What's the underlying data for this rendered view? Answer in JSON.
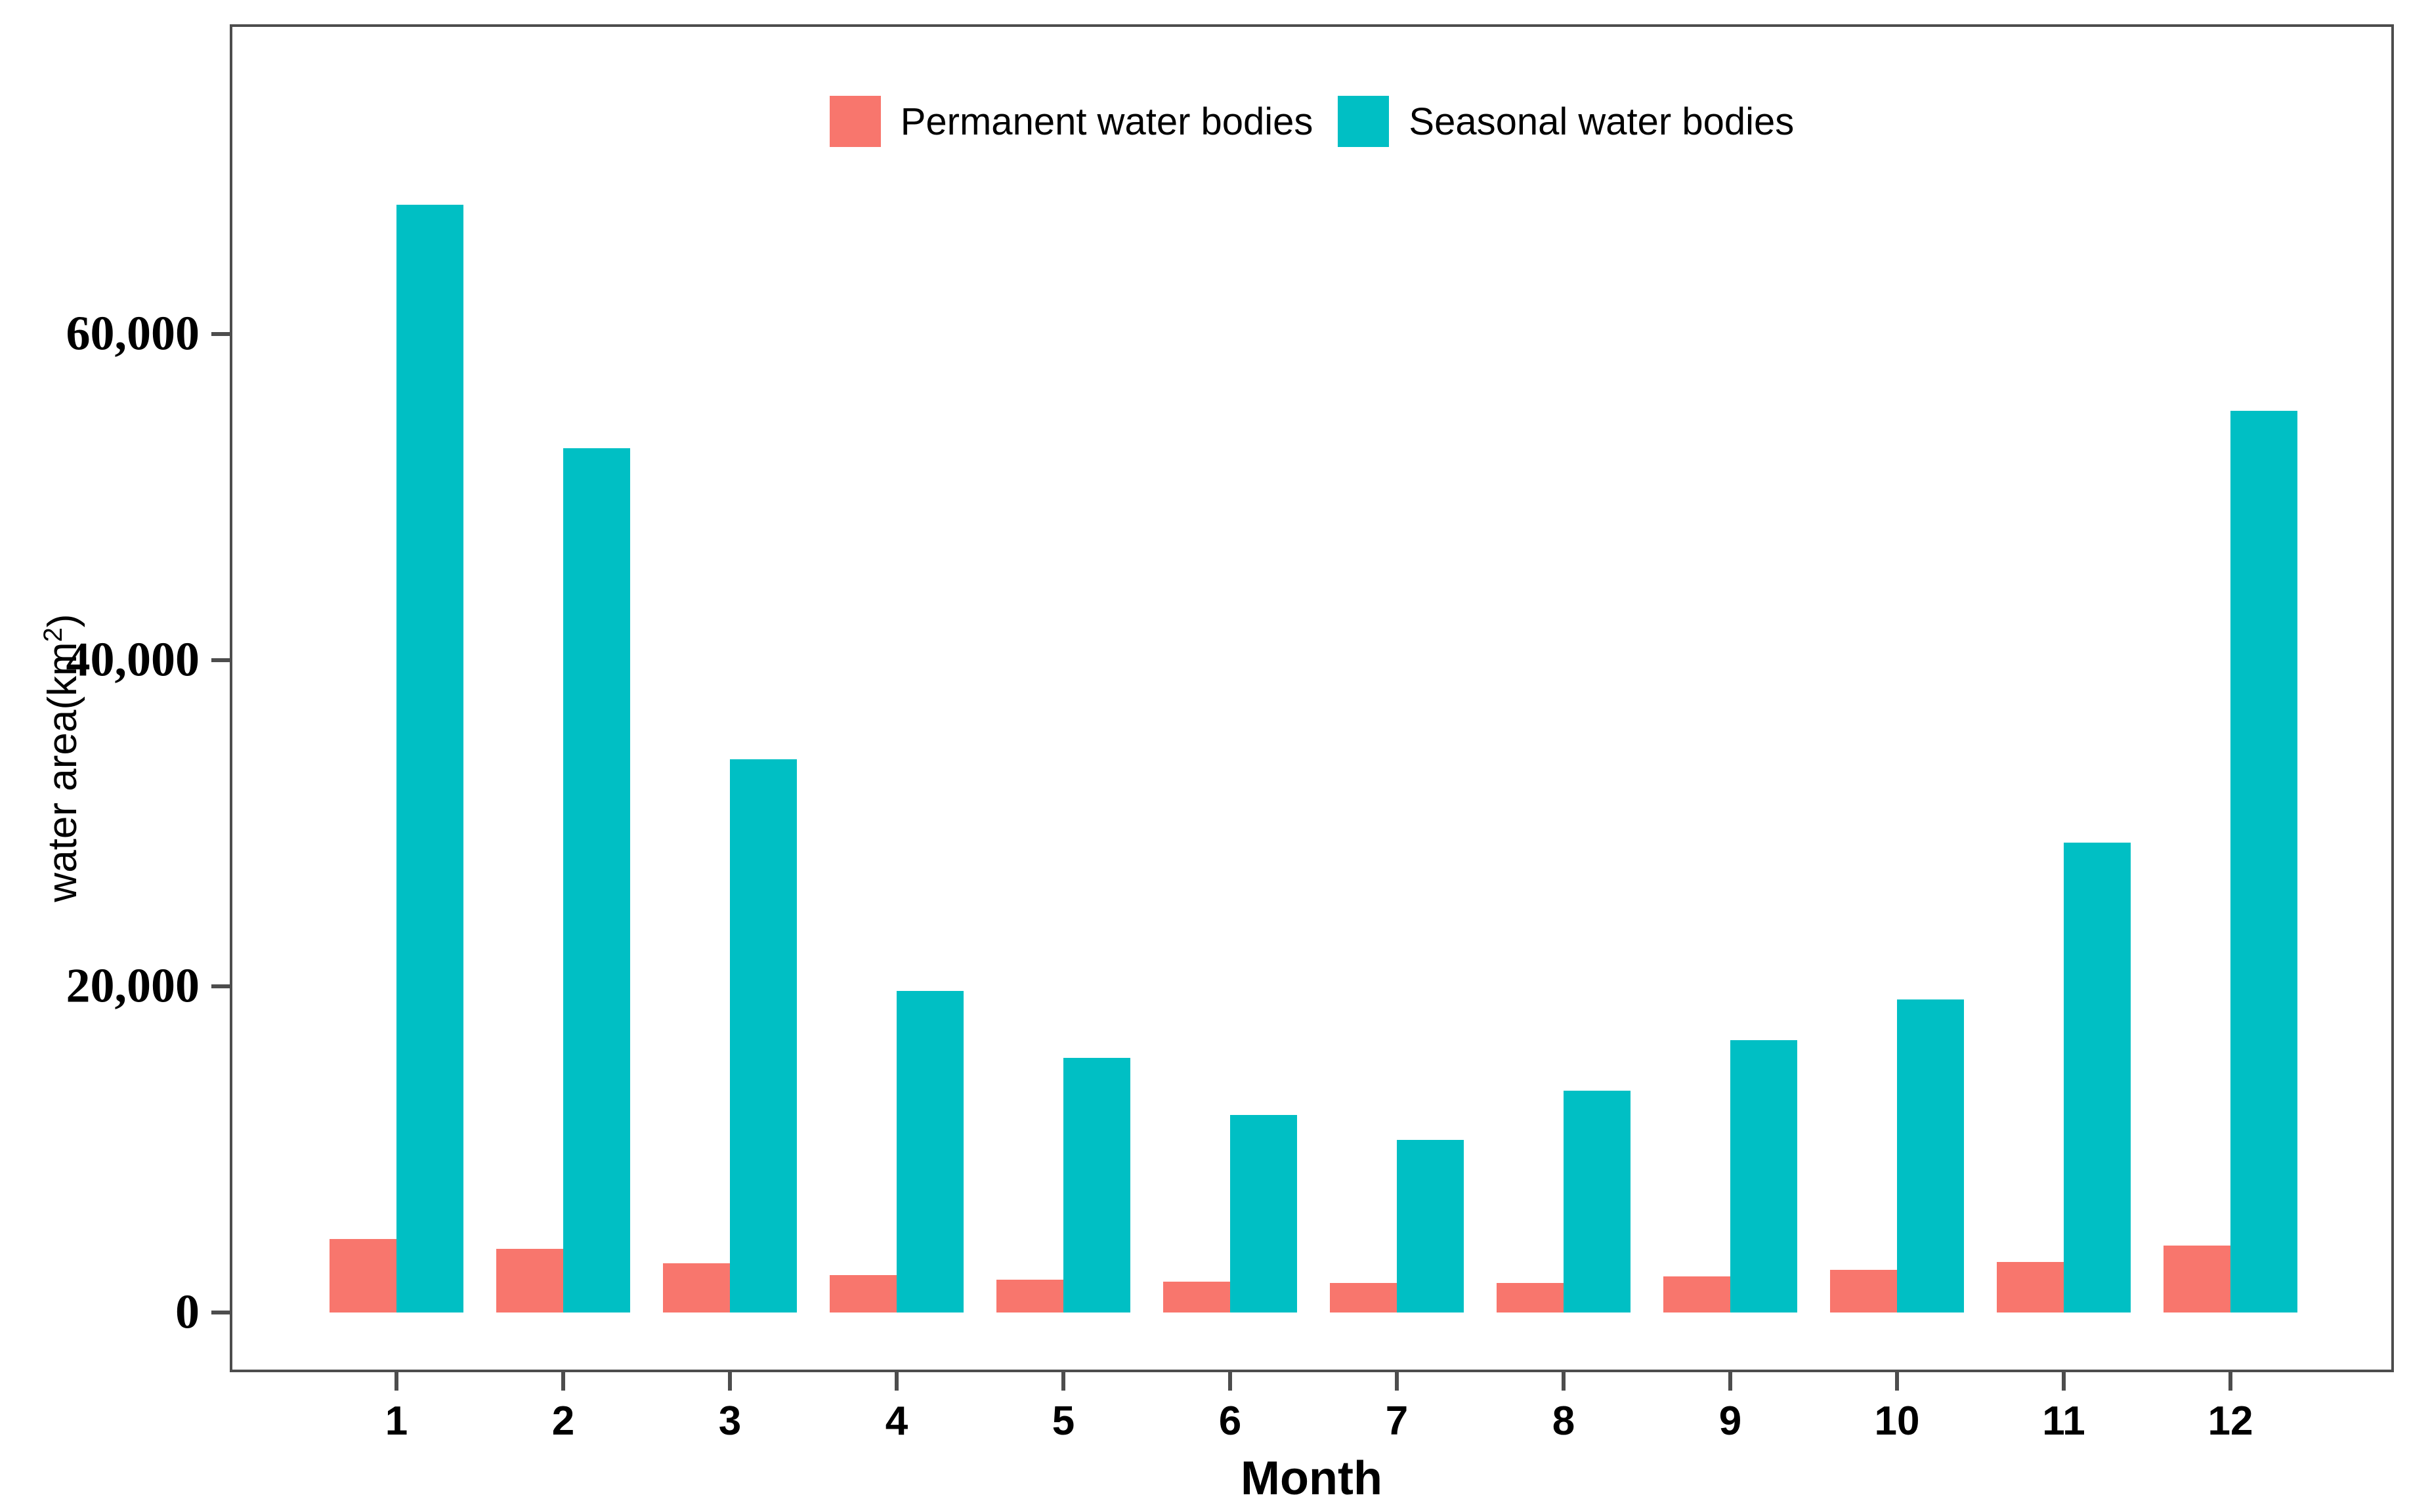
{
  "chart_data": {
    "type": "bar",
    "title": "",
    "categories": [
      "1",
      "2",
      "3",
      "4",
      "5",
      "6",
      "7",
      "8",
      "9",
      "10",
      "11",
      "12"
    ],
    "series": [
      {
        "name": "Permanent water bodies",
        "color": "#F8766D",
        "values": [
          4500,
          3900,
          3000,
          2300,
          2000,
          1900,
          1800,
          1800,
          2200,
          2600,
          3100,
          4100
        ]
      },
      {
        "name": "Seasonal water bodies",
        "color": "#00BFC4",
        "values": [
          67900,
          53000,
          33900,
          19700,
          15600,
          12100,
          10600,
          13600,
          16700,
          19200,
          28800,
          55300
        ]
      }
    ],
    "xlabel": "Month",
    "ylabel": "water area(km2)",
    "ylim": [
      0,
      79000
    ],
    "yticks": [
      0,
      20000,
      40000,
      60000
    ],
    "ytick_labels": [
      "0",
      "20,000",
      "40,000",
      "60,000"
    ],
    "legend_position": "top-center",
    "grid": false
  },
  "y_axis": {
    "title_prefix": "water area(km",
    "title_sup": "2",
    "title_suffix": ")"
  },
  "colors": {
    "axis_line": "#4d4d4d",
    "text": "#000000"
  }
}
